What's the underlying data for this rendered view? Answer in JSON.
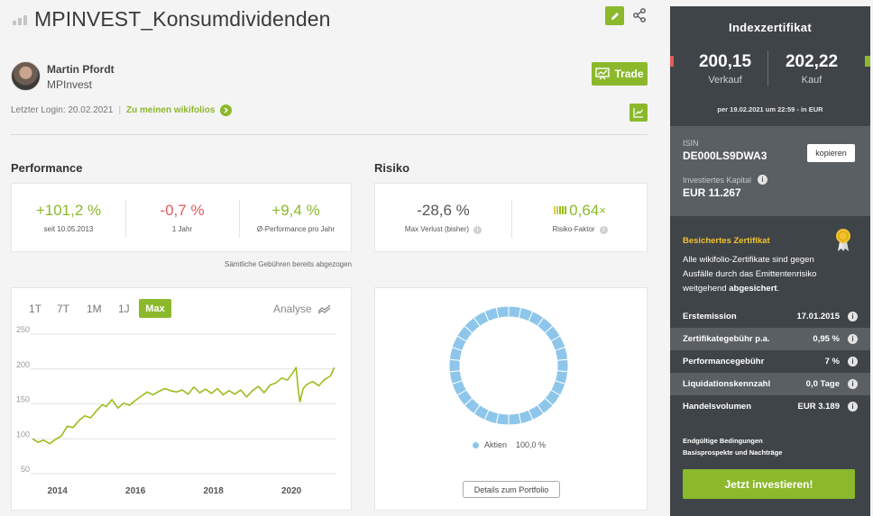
{
  "header": {
    "title": "MPINVEST_Konsumdividenden",
    "author_name": "Martin Pfordt",
    "author_org": "MPInvest",
    "last_login": "Letzter Login: 20.02.2021",
    "separator": "|",
    "wikifolios_link": "Zu meinen wikifolios",
    "trade_label": "Trade",
    "icons": [
      "bar-chart-icon",
      "pencil-icon",
      "share-icon",
      "trade-icon",
      "arrow-right-icon",
      "chart-up-icon"
    ]
  },
  "performance": {
    "heading": "Performance",
    "items": [
      {
        "value": "+101,2 %",
        "label": "seit 10.05.2013",
        "tone": "green"
      },
      {
        "value": "-0,7 %",
        "label": "1 Jahr",
        "tone": "red"
      },
      {
        "value": "+9,4 %",
        "label": "Ø-Performance pro Jahr",
        "tone": "green"
      }
    ],
    "fees_note": "Sämtliche Gebühren bereits abgezogen"
  },
  "risk": {
    "heading": "Risiko",
    "items": [
      {
        "value": "-28,6 %",
        "label": "Max Verlust (bisher)"
      },
      {
        "value": "0,64",
        "suffix": "×",
        "label": "Risiko-Faktor"
      }
    ]
  },
  "timeframes": {
    "items": [
      "1T",
      "7T",
      "1M",
      "1J"
    ],
    "active": "Max",
    "analyse": "Analyse"
  },
  "chart_data": {
    "type": "line",
    "title": "",
    "xlabel": "",
    "ylabel": "",
    "x_ticks": [
      "2014",
      "2016",
      "2018",
      "2020"
    ],
    "y_ticks": [
      50,
      100,
      150,
      200,
      250
    ],
    "xlim": [
      2013.36,
      2021.13
    ],
    "ylim": [
      50,
      250
    ],
    "color": "#9bbd1d",
    "series": [
      {
        "x": [
          2013.36,
          2013.5,
          2013.65,
          2013.8,
          2013.95,
          2014.1,
          2014.25,
          2014.4,
          2014.55,
          2014.7,
          2014.85,
          2015.0,
          2015.15,
          2015.25,
          2015.4,
          2015.55,
          2015.7,
          2015.85,
          2016.0,
          2016.15,
          2016.3,
          2016.45,
          2016.6,
          2016.75,
          2016.9,
          2017.05,
          2017.2,
          2017.35,
          2017.5,
          2017.65,
          2017.8,
          2017.95,
          2018.1,
          2018.25,
          2018.4,
          2018.55,
          2018.7,
          2018.85,
          2019.0,
          2019.15,
          2019.3,
          2019.45,
          2019.6,
          2019.75,
          2019.9,
          2020.05,
          2020.12,
          2020.18,
          2020.22,
          2020.3,
          2020.4,
          2020.55,
          2020.7,
          2020.85,
          2021.0,
          2021.1
        ],
        "values": [
          100,
          95,
          98,
          93,
          99,
          104,
          118,
          116,
          126,
          133,
          130,
          140,
          149,
          146,
          156,
          144,
          151,
          148,
          155,
          161,
          167,
          163,
          168,
          172,
          169,
          167,
          170,
          164,
          174,
          166,
          171,
          165,
          172,
          163,
          169,
          164,
          170,
          160,
          169,
          175,
          166,
          177,
          180,
          187,
          184,
          196,
          202,
          168,
          153,
          172,
          178,
          182,
          176,
          185,
          190,
          202
        ]
      }
    ]
  },
  "allocation": {
    "legend_label": "Aktien",
    "legend_value": "100,0 %",
    "share": 1.0,
    "color": "#8dc6ea",
    "details_button": "Details zum Portfolio"
  },
  "sidebar": {
    "heading": "Indexzertifikat",
    "sell_price": "200,15",
    "sell_label": "Verkauf",
    "buy_price": "202,22",
    "buy_label": "Kauf",
    "price_date": "per 19.02.2021 um 22:59 - in EUR",
    "isin_label": "ISIN",
    "isin": "DE000LS9DWA3",
    "copy_label": "kopieren",
    "capital_label": "Investiertes Kapital",
    "capital": "EUR 11.267",
    "secured_title": "Besichertes Zertifikat",
    "secured_text_1": "Alle wikifolio-Zertifikate sind gegen Ausfälle durch das Emittentenrisiko weitgehend ",
    "secured_text_bold": "abgesichert",
    "secured_text_end": ".",
    "rows": [
      {
        "label": "Erstemission",
        "value": "17.01.2015"
      },
      {
        "label": "Zertifikategebühr p.a.",
        "value": "0,95 %"
      },
      {
        "label": "Performancegebühr",
        "value": "7 %"
      },
      {
        "label": "Liquidationskennzahl",
        "value": "0,0 Tage"
      },
      {
        "label": "Handelsvolumen",
        "value": "EUR 3.189"
      }
    ],
    "terms_1": "Endgültige Bedingungen",
    "terms_2": "Basisprospekte und Nachträge",
    "invest_label": "Jetzt investieren!"
  },
  "colors": {
    "accent": "#8cb82c",
    "negative": "#e15b5b",
    "sidebar_bg": "#3f4448",
    "sidebar_alt": "#595f63",
    "gold": "#f2c22e"
  }
}
